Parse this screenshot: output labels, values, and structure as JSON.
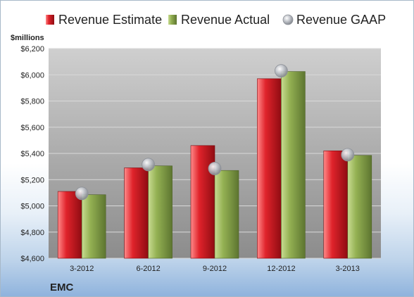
{
  "chart_data": {
    "type": "bar",
    "company": "EMC",
    "unit_label": "$millions",
    "categories": [
      "3-2012",
      "6-2012",
      "9-2012",
      "12-2012",
      "3-2013"
    ],
    "series": [
      {
        "name": "Revenue Estimate",
        "color": "#d41f26",
        "values": [
          5110,
          5290,
          5460,
          5970,
          5420
        ]
      },
      {
        "name": "Revenue Actual",
        "color": "#8aa84a",
        "values": [
          5085,
          5305,
          5270,
          6025,
          5385
        ]
      }
    ],
    "markers": {
      "name": "Revenue GAAP",
      "color": "#b8bcc4",
      "values": [
        5095,
        5315,
        5285,
        6030,
        5390
      ]
    },
    "ylim": [
      4600,
      6200
    ],
    "yticks": [
      4600,
      4800,
      5000,
      5200,
      5400,
      5600,
      5800,
      6000,
      6200
    ],
    "ytick_labels": [
      "$4,600",
      "$4,800",
      "$5,000",
      "$5,200",
      "$5,400",
      "$5,600",
      "$5,800",
      "$6,000",
      "$6,200"
    ],
    "grid": true,
    "legend_position": "top"
  }
}
